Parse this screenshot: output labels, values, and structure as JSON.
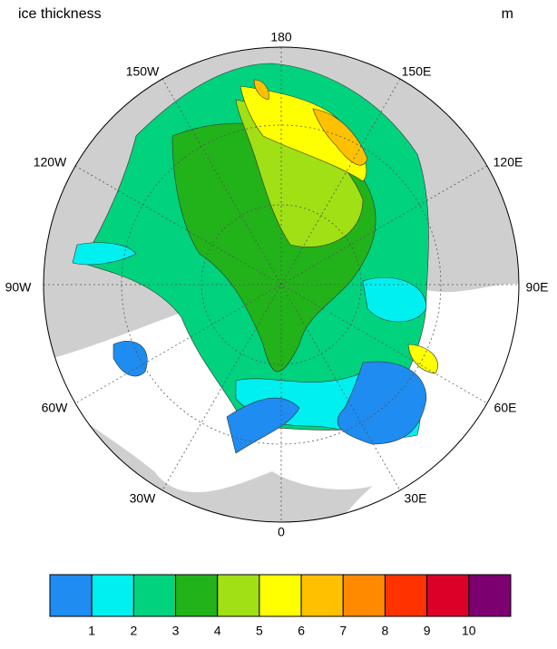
{
  "header": {
    "title": "ice thickness",
    "units": "m"
  },
  "map": {
    "lon_labels": [
      "180",
      "150E",
      "120E",
      "90E",
      "60E",
      "30E",
      "0",
      "30W",
      "60W",
      "90W",
      "120W",
      "150W"
    ]
  },
  "colorbar": {
    "levels": [
      1,
      2,
      3,
      4,
      5,
      6,
      7,
      8,
      9,
      10
    ],
    "colors": [
      "#1e8cf0",
      "#00f0f0",
      "#00d27d",
      "#22b21a",
      "#a0e014",
      "#ffff00",
      "#ffc000",
      "#ff8a00",
      "#ff3200",
      "#dc0028",
      "#7d0070"
    ]
  }
}
